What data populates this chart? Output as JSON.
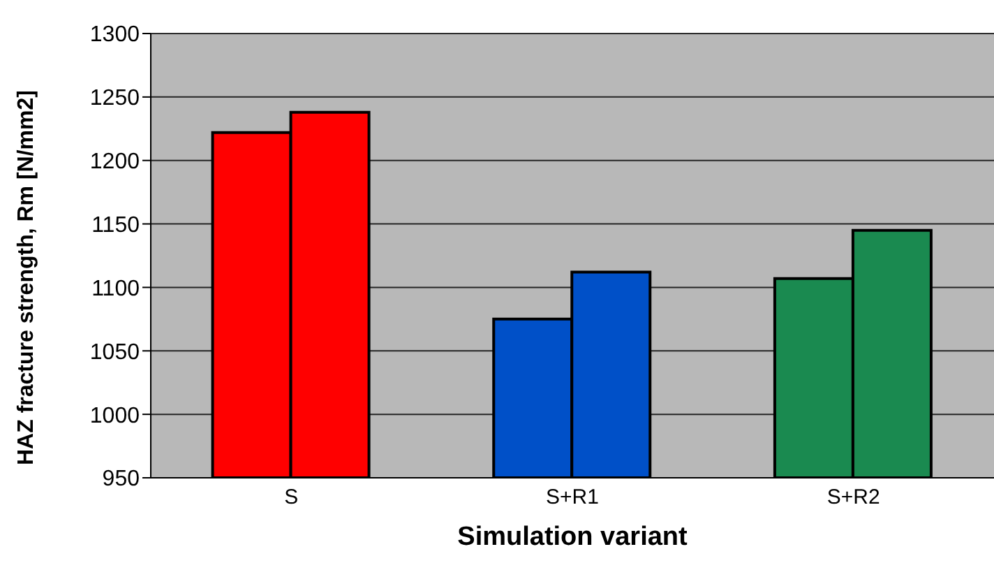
{
  "chart_data": {
    "type": "bar",
    "xlabel": "Simulation variant",
    "ylabel": "HAZ fracture strength, Rm [N/mm2]",
    "categories": [
      "S",
      "S+R1",
      "S+R2"
    ],
    "series": [
      {
        "colors": [
          "#ff0000",
          "#0050c8",
          "#1a8a50"
        ],
        "values": [
          1222,
          1075,
          1107
        ]
      },
      {
        "colors": [
          "#ff0000",
          "#0050c8",
          "#1a8a50"
        ],
        "values": [
          1238,
          1112,
          1145
        ]
      }
    ],
    "ylim": [
      950,
      1300
    ],
    "yticks": [
      950,
      1000,
      1050,
      1100,
      1150,
      1200,
      1250,
      1300
    ],
    "grid": "y",
    "legend": false
  }
}
